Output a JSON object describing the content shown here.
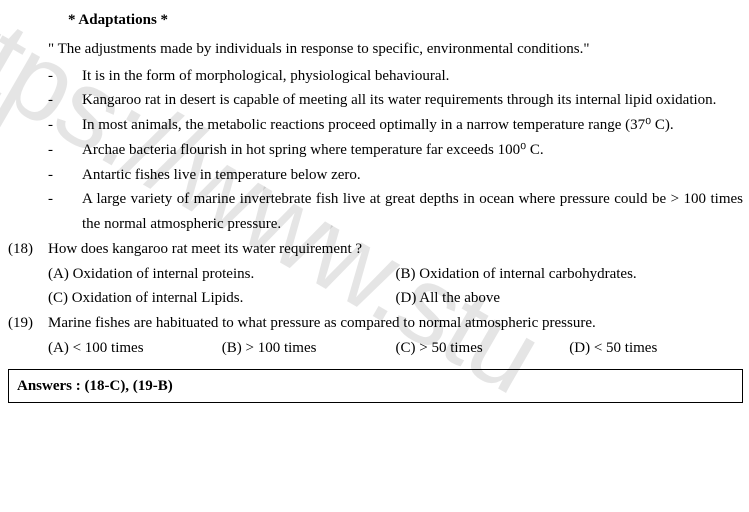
{
  "watermark_text": "https://www.stu",
  "section_title": "* Adaptations *",
  "intro": "\" The adjustments made by individuals in response to specific, environmental conditions.\"",
  "bullets": [
    "It is in the form of morphological, physiological behavioural.",
    "Kangaroo rat in desert is capable of meeting all its water requirements through its internal lipid oxidation.",
    "In most animals, the metabolic reactions proceed optimally in a narrow temperature range (37⁰ C).",
    "Archae bacteria flourish in hot spring where temperature far exceeds 100⁰ C.",
    "Antartic fishes live in temperature below zero.",
    "A large variety of marine invertebrate fish live at great depths in ocean where pressure could be > 100 times the normal atmospheric pressure."
  ],
  "q18": {
    "num": "(18)",
    "text": "How does kangaroo rat meet its water requirement ?",
    "optA": "(A) Oxidation of internal proteins.",
    "optB": "(B) Oxidation of internal carbohydrates.",
    "optC": "(C) Oxidation of internal  Lipids.",
    "optD": "(D) All the above"
  },
  "q19": {
    "num": "(19)",
    "text": "Marine fishes are habituated to what pressure as compared to normal atmospheric pressure.",
    "optA": "(A) < 100 times",
    "optB": "(B) > 100 times",
    "optC": "(C) > 50 times",
    "optD": "(D) < 50 times"
  },
  "answers": "Answers  :  (18-C),  (19-B)"
}
